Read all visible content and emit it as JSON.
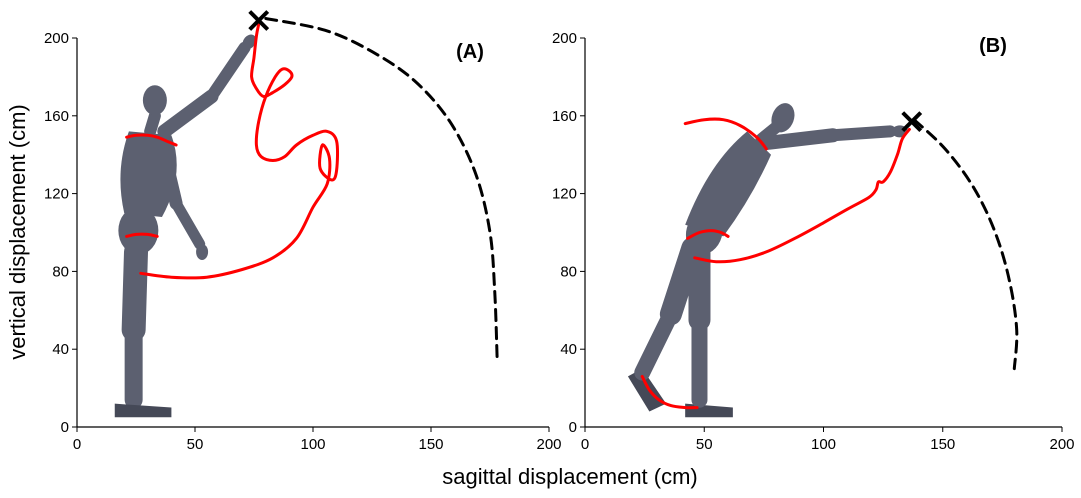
{
  "chart_data": [
    {
      "type": "line",
      "panel_label": "(A)",
      "xlim": [
        0,
        200
      ],
      "ylim": [
        0,
        200
      ],
      "x_ticks": [
        0,
        50,
        100,
        150,
        200
      ],
      "y_ticks": [
        0,
        40,
        80,
        120,
        160,
        200
      ],
      "ylabel": "vertical displacement (cm)",
      "colors": {
        "trajectory": "#ff0000",
        "boundary": "#000000",
        "figure": "#5c6070"
      },
      "figure_pose": "standing, one arm raised overhead",
      "series": [
        {
          "role": "hand-trajectory",
          "style": "solid-red",
          "points": [
            [
              27,
              79
            ],
            [
              40,
              77
            ],
            [
              55,
              77
            ],
            [
              70,
              81
            ],
            [
              83,
              87
            ],
            [
              93,
              97
            ],
            [
              100,
              113
            ],
            [
              106,
              125
            ],
            [
              107,
              138
            ],
            [
              104,
              145
            ],
            [
              103,
              133
            ],
            [
              108,
              127
            ],
            [
              110,
              132
            ],
            [
              110,
              147
            ],
            [
              106,
              152
            ],
            [
              100,
              150
            ],
            [
              93,
              145
            ],
            [
              88,
              139
            ],
            [
              83,
              137
            ],
            [
              78,
              139
            ],
            [
              76,
              145
            ],
            [
              77,
              157
            ],
            [
              80,
              170
            ],
            [
              84,
              180
            ],
            [
              87,
              184
            ],
            [
              90,
              183
            ],
            [
              91,
              180
            ],
            [
              88,
              176
            ],
            [
              83,
              172
            ],
            [
              79,
              170
            ],
            [
              76,
              174
            ],
            [
              74,
              180
            ],
            [
              75,
              190
            ],
            [
              76,
              201
            ],
            [
              77,
              207
            ]
          ]
        },
        {
          "role": "shoulder-trajectory",
          "style": "solid-red",
          "points": [
            [
              21,
              149
            ],
            [
              25,
              150
            ],
            [
              30,
              150
            ],
            [
              34,
              149
            ],
            [
              38,
              147
            ],
            [
              42,
              145
            ]
          ]
        },
        {
          "role": "hip-trajectory",
          "style": "solid-red",
          "points": [
            [
              21,
              98
            ],
            [
              25,
              99
            ],
            [
              30,
              99
            ],
            [
              34,
              98
            ]
          ]
        },
        {
          "role": "reach-boundary",
          "style": "dashed-black",
          "points": [
            [
              80,
              210
            ],
            [
              105,
              204
            ],
            [
              125,
              193
            ],
            [
              143,
              178
            ],
            [
              158,
              157
            ],
            [
              169,
              130
            ],
            [
              175,
              100
            ],
            [
              177,
              70
            ],
            [
              178,
              36
            ]
          ]
        }
      ],
      "markers": [
        {
          "x": 77,
          "y": 209,
          "symbol": "x"
        }
      ]
    },
    {
      "type": "line",
      "panel_label": "(B)",
      "xlim": [
        0,
        200
      ],
      "ylim": [
        0,
        200
      ],
      "x_ticks": [
        0,
        50,
        100,
        150,
        200
      ],
      "y_ticks": [
        0,
        40,
        80,
        120,
        160,
        200
      ],
      "xlabel": "sagittal displacement (cm)",
      "colors": {
        "trajectory": "#ff0000",
        "boundary": "#000000",
        "figure": "#5c6070"
      },
      "figure_pose": "leaning forward, arm extended horizontally",
      "series": [
        {
          "role": "hand-trajectory",
          "style": "solid-red",
          "points": [
            [
              46,
              87
            ],
            [
              55,
              85
            ],
            [
              65,
              86
            ],
            [
              76,
              90
            ],
            [
              88,
              97
            ],
            [
              100,
              105
            ],
            [
              110,
              112
            ],
            [
              119,
              118
            ],
            [
              122,
              122
            ],
            [
              123,
              126
            ],
            [
              125,
              126
            ],
            [
              128,
              131
            ],
            [
              131,
              140
            ],
            [
              133,
              148
            ],
            [
              136,
              153
            ]
          ]
        },
        {
          "role": "shoulder-trajectory",
          "style": "solid-red",
          "points": [
            [
              42,
              156
            ],
            [
              50,
              158
            ],
            [
              58,
              158
            ],
            [
              65,
              155
            ],
            [
              72,
              149
            ],
            [
              76,
              143
            ]
          ]
        },
        {
          "role": "hip-trajectory",
          "style": "solid-red",
          "points": [
            [
              43,
              97
            ],
            [
              48,
              100
            ],
            [
              53,
              101
            ],
            [
              57,
              100
            ],
            [
              60,
              98
            ]
          ]
        },
        {
          "role": "foot-trajectory",
          "style": "solid-red",
          "points": [
            [
              24,
              26
            ],
            [
              27,
              19
            ],
            [
              31,
              14
            ],
            [
              36,
              11
            ],
            [
              42,
              10
            ],
            [
              47,
              10
            ]
          ]
        },
        {
          "role": "reach-boundary",
          "style": "dashed-black",
          "points": [
            [
              138,
              158
            ],
            [
              151,
              143
            ],
            [
              163,
              123
            ],
            [
              172,
              100
            ],
            [
              178,
              75
            ],
            [
              181,
              50
            ],
            [
              180,
              30
            ]
          ]
        }
      ],
      "markers": [
        {
          "x": 137,
          "y": 157,
          "symbol": "x"
        }
      ]
    }
  ]
}
